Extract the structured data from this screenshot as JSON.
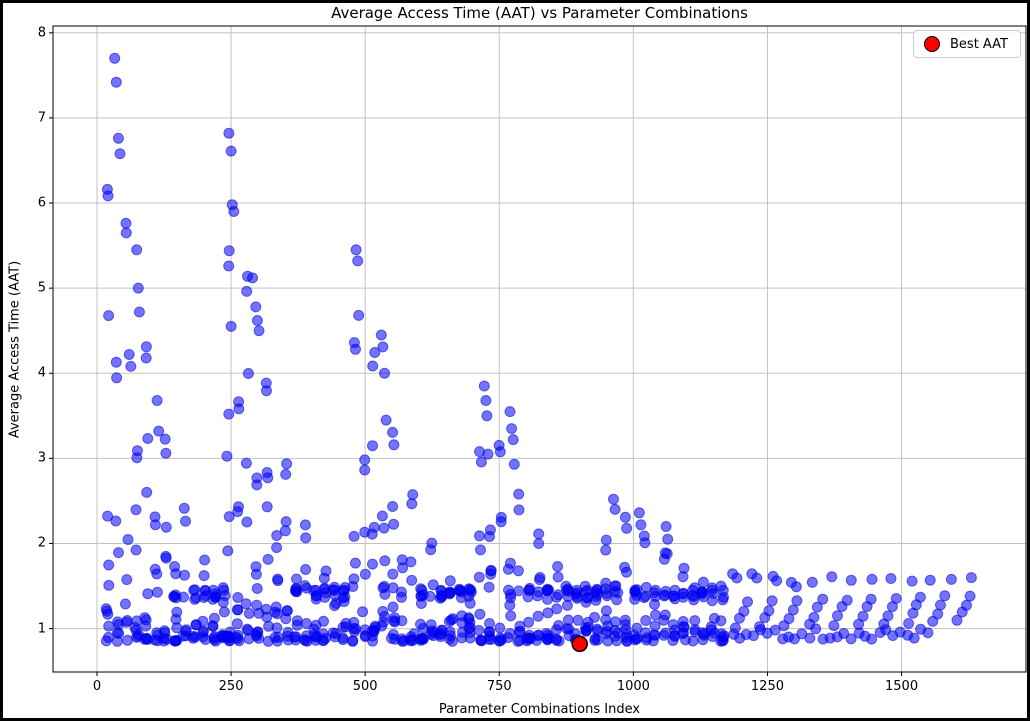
{
  "figure": {
    "background": "#ffffff",
    "border_color": "#000000"
  },
  "chart_data": {
    "type": "scatter",
    "title": "Average Access Time (AAT) vs Parameter Combinations",
    "xlabel": "Parameter Combinations Index",
    "ylabel": "Average Access Time (AAT)",
    "xlim": [
      -82,
      1732
    ],
    "ylim": [
      0.49,
      8.08
    ],
    "xticks": [
      0,
      250,
      500,
      750,
      1000,
      1250,
      1500
    ],
    "yticks": [
      1,
      2,
      3,
      4,
      5,
      6,
      7,
      8
    ],
    "grid": true,
    "grid_color": "#c3c3c3",
    "point_style": {
      "color": "#0000ff",
      "edge_color": "#0000cc",
      "alpha": 0.55,
      "radius": 5
    },
    "legend": {
      "position": "upper-right",
      "entries": [
        {
          "label": "Best AAT",
          "color": "#ff0000"
        }
      ]
    },
    "best_point": {
      "x": 900,
      "y": 0.82,
      "color": "#ff0000",
      "edge": "#000000",
      "radius": 7.5
    },
    "peak_points": [
      [
        33,
        7.7
      ],
      [
        36,
        7.42
      ],
      [
        40,
        6.76
      ],
      [
        43,
        6.58
      ],
      [
        74,
        5.45
      ],
      [
        77,
        5.0
      ],
      [
        79,
        4.72
      ],
      [
        60,
        4.22
      ],
      [
        63,
        4.08
      ],
      [
        112,
        3.68
      ],
      [
        115,
        3.32
      ],
      [
        246,
        6.82
      ],
      [
        250,
        6.61
      ],
      [
        252,
        5.98
      ],
      [
        255,
        5.9
      ],
      [
        290,
        5.12
      ],
      [
        296,
        4.78
      ],
      [
        299,
        4.62
      ],
      [
        302,
        4.5
      ],
      [
        250,
        4.55
      ],
      [
        483,
        5.45
      ],
      [
        486,
        5.32
      ],
      [
        488,
        4.68
      ],
      [
        530,
        4.45
      ],
      [
        533,
        4.31
      ],
      [
        536,
        4.0
      ],
      [
        539,
        3.45
      ],
      [
        722,
        3.85
      ],
      [
        725,
        3.68
      ],
      [
        727,
        3.5
      ],
      [
        729,
        3.05
      ],
      [
        770,
        3.55
      ],
      [
        773,
        3.35
      ],
      [
        776,
        3.22
      ],
      [
        778,
        2.93
      ],
      [
        963,
        2.52
      ],
      [
        966,
        2.4
      ],
      [
        1011,
        2.36
      ],
      [
        1014,
        2.22
      ],
      [
        1061,
        2.2
      ],
      [
        1064,
        2.05
      ],
      [
        1063,
        1.88
      ]
    ],
    "column_blocks": [
      {
        "start": 20,
        "peak": 7.7,
        "columns": 13,
        "spacing": 18,
        "decay": 0.145
      },
      {
        "start": 245,
        "peak": 6.8,
        "columns": 13,
        "spacing": 18,
        "decay": 0.14
      },
      {
        "start": 480,
        "peak": 5.45,
        "columns": 13,
        "spacing": 18,
        "decay": 0.125
      },
      {
        "start": 715,
        "peak": 3.85,
        "columns": 13,
        "spacing": 18,
        "decay": 0.1
      },
      {
        "start": 950,
        "peak": 2.55,
        "columns": 13,
        "spacing": 18,
        "decay": 0.05
      }
    ],
    "base_band": [
      0.85,
      1.35
    ],
    "flat_tail": {
      "start": 1185,
      "end": 1655,
      "top_dots": {
        "spacing": 37,
        "y_min": 1.45,
        "y_max": 1.66
      },
      "mid_groups": {
        "group_spacing": 46,
        "dots": 4,
        "dot_spacing": 8,
        "y_start": 1.0,
        "y_end": 1.3,
        "drift": 0.08
      },
      "bottom_dots": {
        "spacing": 13,
        "y_min": 0.87,
        "y_max": 1.0,
        "end": 1560
      }
    }
  }
}
